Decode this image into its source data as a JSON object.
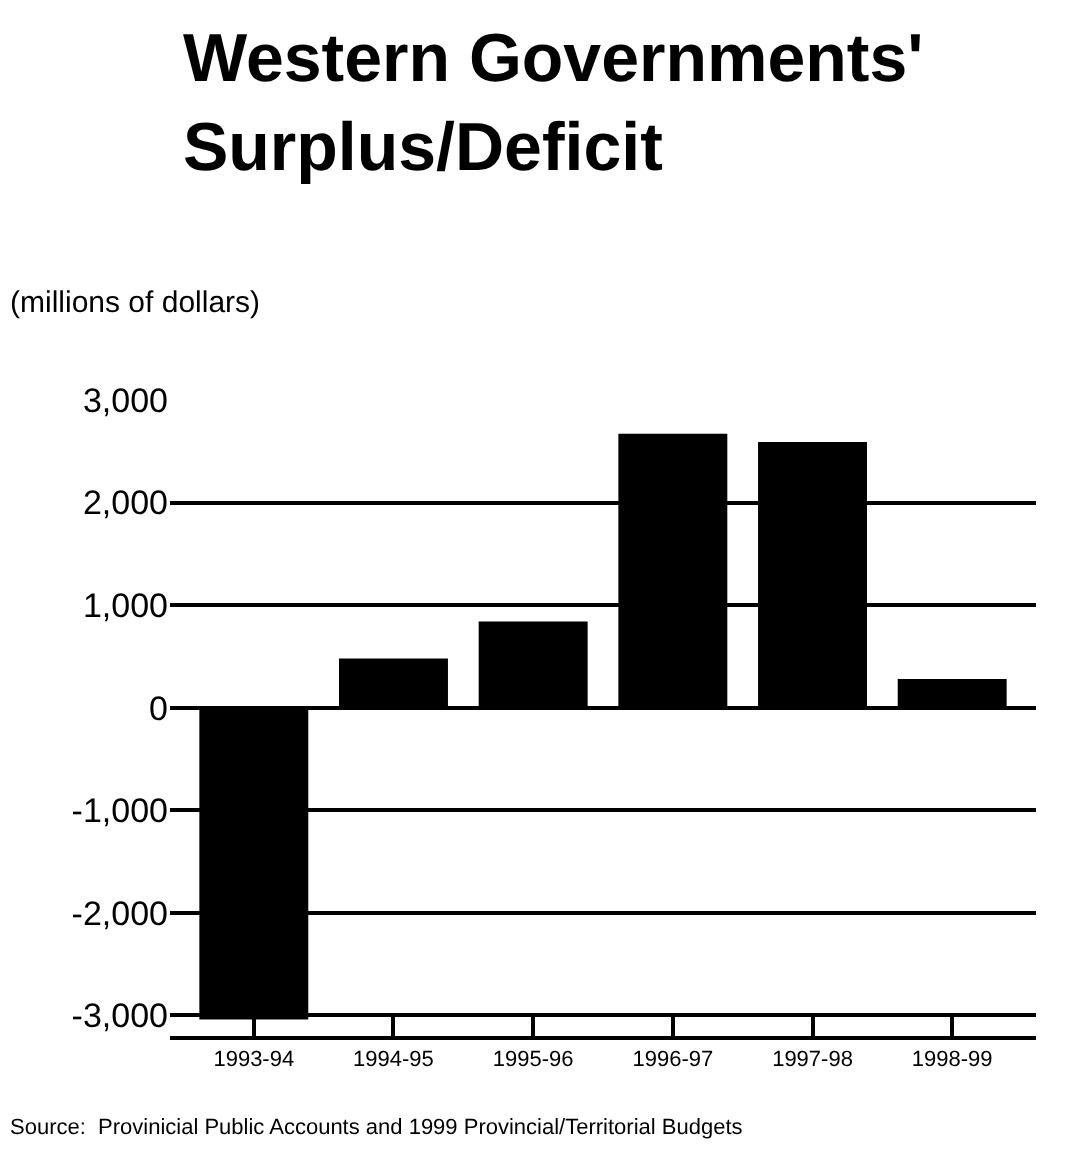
{
  "chart_data": {
    "type": "bar",
    "title": "Western Governments'\nSurplus/Deficit",
    "subtitle": "(millions of dollars)",
    "categories": [
      "1993-94",
      "1994-95",
      "1995-96",
      "1996-97",
      "1997-98",
      "1998-99"
    ],
    "values": [
      -3040,
      480,
      840,
      2670,
      2590,
      280
    ],
    "color": "#000000",
    "ylim": [
      -3200,
      3000
    ],
    "yticks": [
      {
        "value": 3000,
        "label": "3,000"
      },
      {
        "value": 2000,
        "label": "2,000"
      },
      {
        "value": 1000,
        "label": "1,000"
      },
      0,
      {
        "value": -1000,
        "label": "-1,000"
      },
      {
        "value": -2000,
        "label": "-2,000"
      },
      {
        "value": -3000,
        "label": "-3,000"
      }
    ],
    "grid": "y",
    "annotations": [
      "Source:  Provinicial Public Accounts and 1999 Provincial/Territorial Budgets"
    ]
  }
}
